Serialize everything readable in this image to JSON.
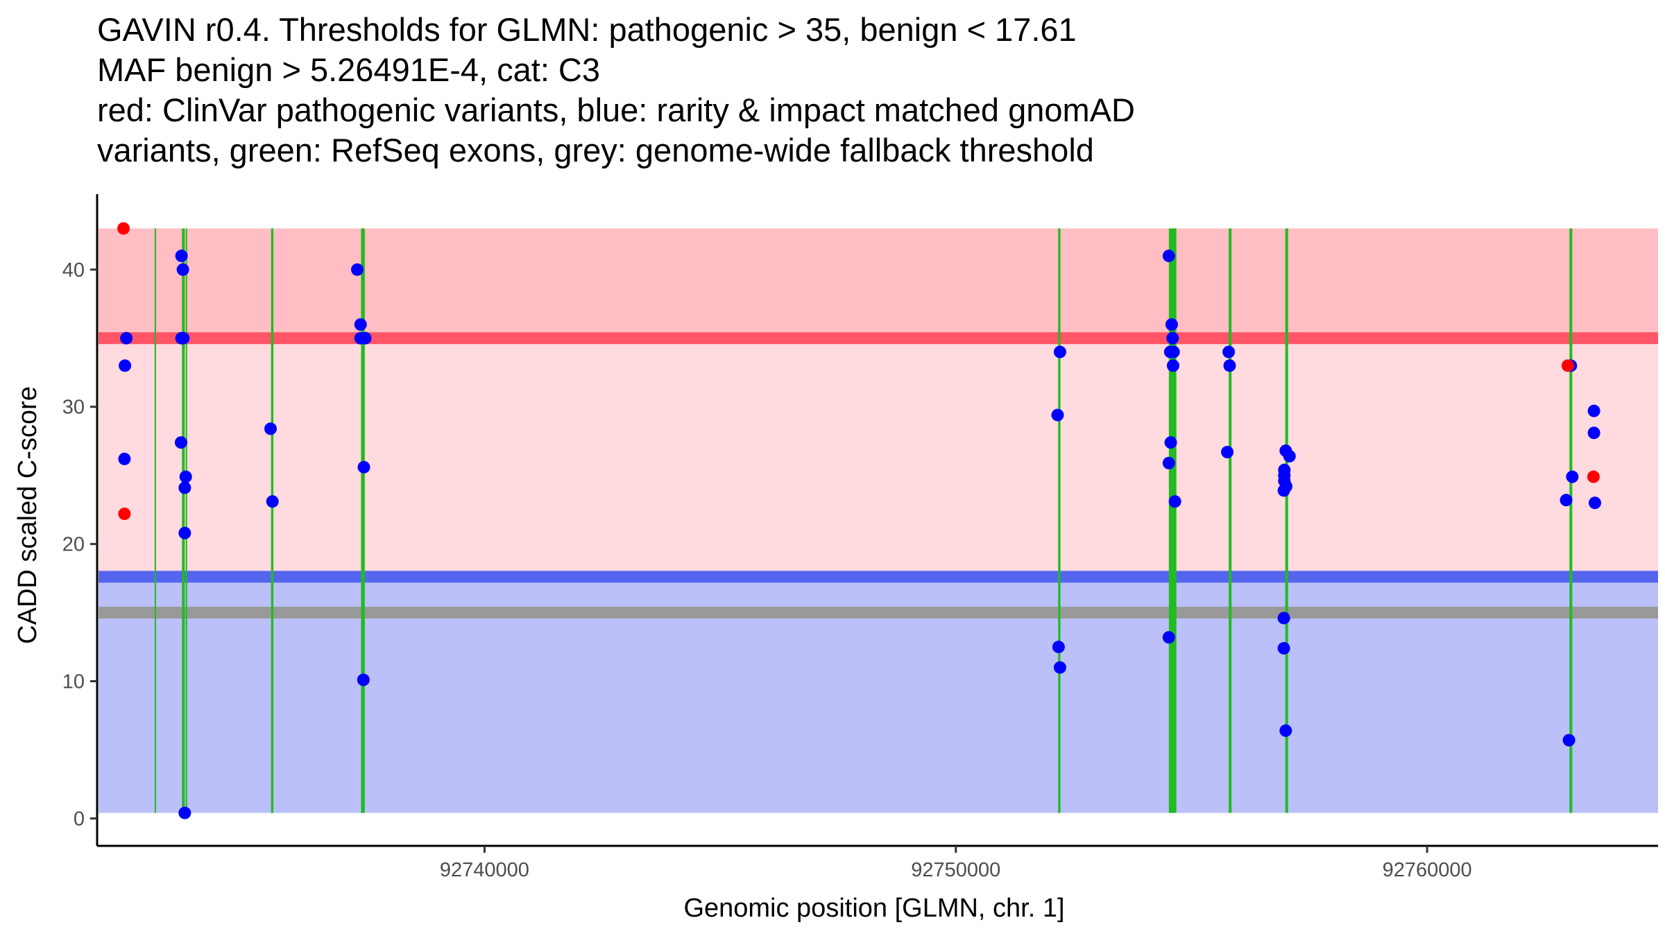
{
  "chart_data": {
    "type": "scatter",
    "title_lines": [
      "GAVIN r0.4. Thresholds for GLMN: pathogenic > 35, benign < 17.61",
      "MAF benign > 5.26491E-4, cat: C3",
      "red: ClinVar pathogenic variants, blue: rarity & impact matched gnomAD",
      "variants, green: RefSeq exons, grey: genome-wide fallback threshold"
    ],
    "xlabel": "Genomic position [GLMN, chr. 1]",
    "ylabel": "CADD scaled C-score",
    "xlim": [
      92731780,
      92764900
    ],
    "ylim": [
      -2,
      45.5
    ],
    "x_ticks": [
      92740000,
      92750000,
      92760000
    ],
    "y_ticks": [
      0,
      10,
      20,
      30,
      40
    ],
    "thresholds": {
      "pathogenic": 35,
      "benign": 17.61,
      "fallback": 15,
      "max": 43,
      "min": 0.4
    },
    "colors": {
      "pathogenic_region": "#FFBEC4",
      "middle_region": "#FFDADF",
      "benign_region": "#BBC1F8",
      "pathogenic_line": "#FF5566",
      "benign_line": "#5566EE",
      "fallback_line": "#999999",
      "exon": "#22BB22",
      "clinvar": "#FF0000",
      "gnomad": "#0000FF",
      "axis": "#000000"
    },
    "exons": [
      {
        "start": 92733000,
        "end": 92733030
      },
      {
        "start": 92733580,
        "end": 92733640
      },
      {
        "start": 92733660,
        "end": 92733690
      },
      {
        "start": 92735470,
        "end": 92735520
      },
      {
        "start": 92737380,
        "end": 92737460
      },
      {
        "start": 92752170,
        "end": 92752220
      },
      {
        "start": 92754520,
        "end": 92754680
      },
      {
        "start": 92755790,
        "end": 92755850
      },
      {
        "start": 92756990,
        "end": 92757050
      },
      {
        "start": 92763020,
        "end": 92763080
      }
    ],
    "series": [
      {
        "name": "ClinVar pathogenic variants",
        "points": [
          {
            "x": 92732340,
            "y": 43
          },
          {
            "x": 92732360,
            "y": 22.2
          },
          {
            "x": 92762985,
            "y": 33
          },
          {
            "x": 92763530,
            "y": 24.9
          }
        ]
      },
      {
        "name": "rarity & impact matched gnomAD variants",
        "points": [
          {
            "x": 92732400,
            "y": 35
          },
          {
            "x": 92732370,
            "y": 33
          },
          {
            "x": 92732360,
            "y": 26.2
          },
          {
            "x": 92733570,
            "y": 41
          },
          {
            "x": 92733600,
            "y": 40
          },
          {
            "x": 92733570,
            "y": 35
          },
          {
            "x": 92733610,
            "y": 35
          },
          {
            "x": 92733560,
            "y": 27.4
          },
          {
            "x": 92733660,
            "y": 24.9
          },
          {
            "x": 92733640,
            "y": 24.1
          },
          {
            "x": 92733640,
            "y": 20.8
          },
          {
            "x": 92733640,
            "y": 0.4
          },
          {
            "x": 92735460,
            "y": 28.4
          },
          {
            "x": 92735500,
            "y": 23.1
          },
          {
            "x": 92737300,
            "y": 40
          },
          {
            "x": 92737370,
            "y": 36
          },
          {
            "x": 92737370,
            "y": 35
          },
          {
            "x": 92737470,
            "y": 35
          },
          {
            "x": 92737440,
            "y": 25.6
          },
          {
            "x": 92737430,
            "y": 10.1
          },
          {
            "x": 92752210,
            "y": 34
          },
          {
            "x": 92752160,
            "y": 29.4
          },
          {
            "x": 92752180,
            "y": 12.5
          },
          {
            "x": 92752210,
            "y": 11
          },
          {
            "x": 92754520,
            "y": 41
          },
          {
            "x": 92754580,
            "y": 36
          },
          {
            "x": 92754600,
            "y": 35
          },
          {
            "x": 92754550,
            "y": 34
          },
          {
            "x": 92754620,
            "y": 34
          },
          {
            "x": 92754610,
            "y": 33
          },
          {
            "x": 92754560,
            "y": 27.4
          },
          {
            "x": 92754520,
            "y": 25.9
          },
          {
            "x": 92754650,
            "y": 23.1
          },
          {
            "x": 92754520,
            "y": 13.2
          },
          {
            "x": 92755790,
            "y": 34
          },
          {
            "x": 92755810,
            "y": 33
          },
          {
            "x": 92755760,
            "y": 26.7
          },
          {
            "x": 92757000,
            "y": 26.8
          },
          {
            "x": 92757080,
            "y": 26.4
          },
          {
            "x": 92756970,
            "y": 25.4
          },
          {
            "x": 92756970,
            "y": 25
          },
          {
            "x": 92756970,
            "y": 24.6
          },
          {
            "x": 92757010,
            "y": 24.2
          },
          {
            "x": 92756960,
            "y": 23.9
          },
          {
            "x": 92756960,
            "y": 14.6
          },
          {
            "x": 92756960,
            "y": 12.4
          },
          {
            "x": 92757000,
            "y": 6.4
          },
          {
            "x": 92763050,
            "y": 33
          },
          {
            "x": 92763080,
            "y": 24.9
          },
          {
            "x": 92762950,
            "y": 23.2
          },
          {
            "x": 92763010,
            "y": 5.7
          },
          {
            "x": 92763540,
            "y": 29.7
          },
          {
            "x": 92763540,
            "y": 28.1
          },
          {
            "x": 92763560,
            "y": 23
          }
        ]
      }
    ]
  }
}
